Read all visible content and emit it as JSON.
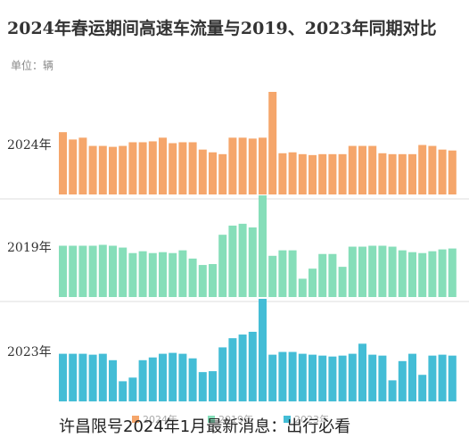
{
  "chart_data": {
    "type": "bar",
    "title": "2024年春运期间高速车流量与2019、2023年同期对比",
    "unit_label": "单位：辆",
    "series": [
      {
        "name": "2024年",
        "color": "#f5a66b",
        "values": [
          68,
          60,
          62,
          53,
          53,
          52,
          53,
          57,
          57,
          58,
          62,
          56,
          57,
          57,
          49,
          46,
          44,
          62,
          62,
          61,
          62,
          112,
          45,
          46,
          44,
          43,
          44,
          44,
          44,
          53,
          53,
          53,
          45,
          44,
          44,
          44,
          54,
          53,
          49,
          48
        ]
      },
      {
        "name": "2019年",
        "color": "#86deb9",
        "values": [
          56,
          56,
          56,
          56,
          57,
          56,
          54,
          48,
          50,
          48,
          49,
          48,
          51,
          42,
          35,
          36,
          68,
          78,
          80,
          76,
          111,
          45,
          51,
          51,
          20,
          31,
          47,
          47,
          33,
          55,
          55,
          56,
          56,
          55,
          51,
          49,
          48,
          50,
          52,
          53
        ]
      },
      {
        "name": "2023年",
        "color": "#44bdd6",
        "values": [
          52,
          52,
          52,
          51,
          52,
          45,
          22,
          26,
          45,
          48,
          52,
          53,
          52,
          47,
          32,
          33,
          59,
          69,
          73,
          76,
          112,
          51,
          54,
          54,
          52,
          51,
          50,
          49,
          50,
          52,
          63,
          51,
          50,
          23,
          44,
          52,
          29,
          50,
          51,
          50
        ]
      }
    ],
    "watermark": "许昌限号2024年1月最新消息：出行必看"
  }
}
